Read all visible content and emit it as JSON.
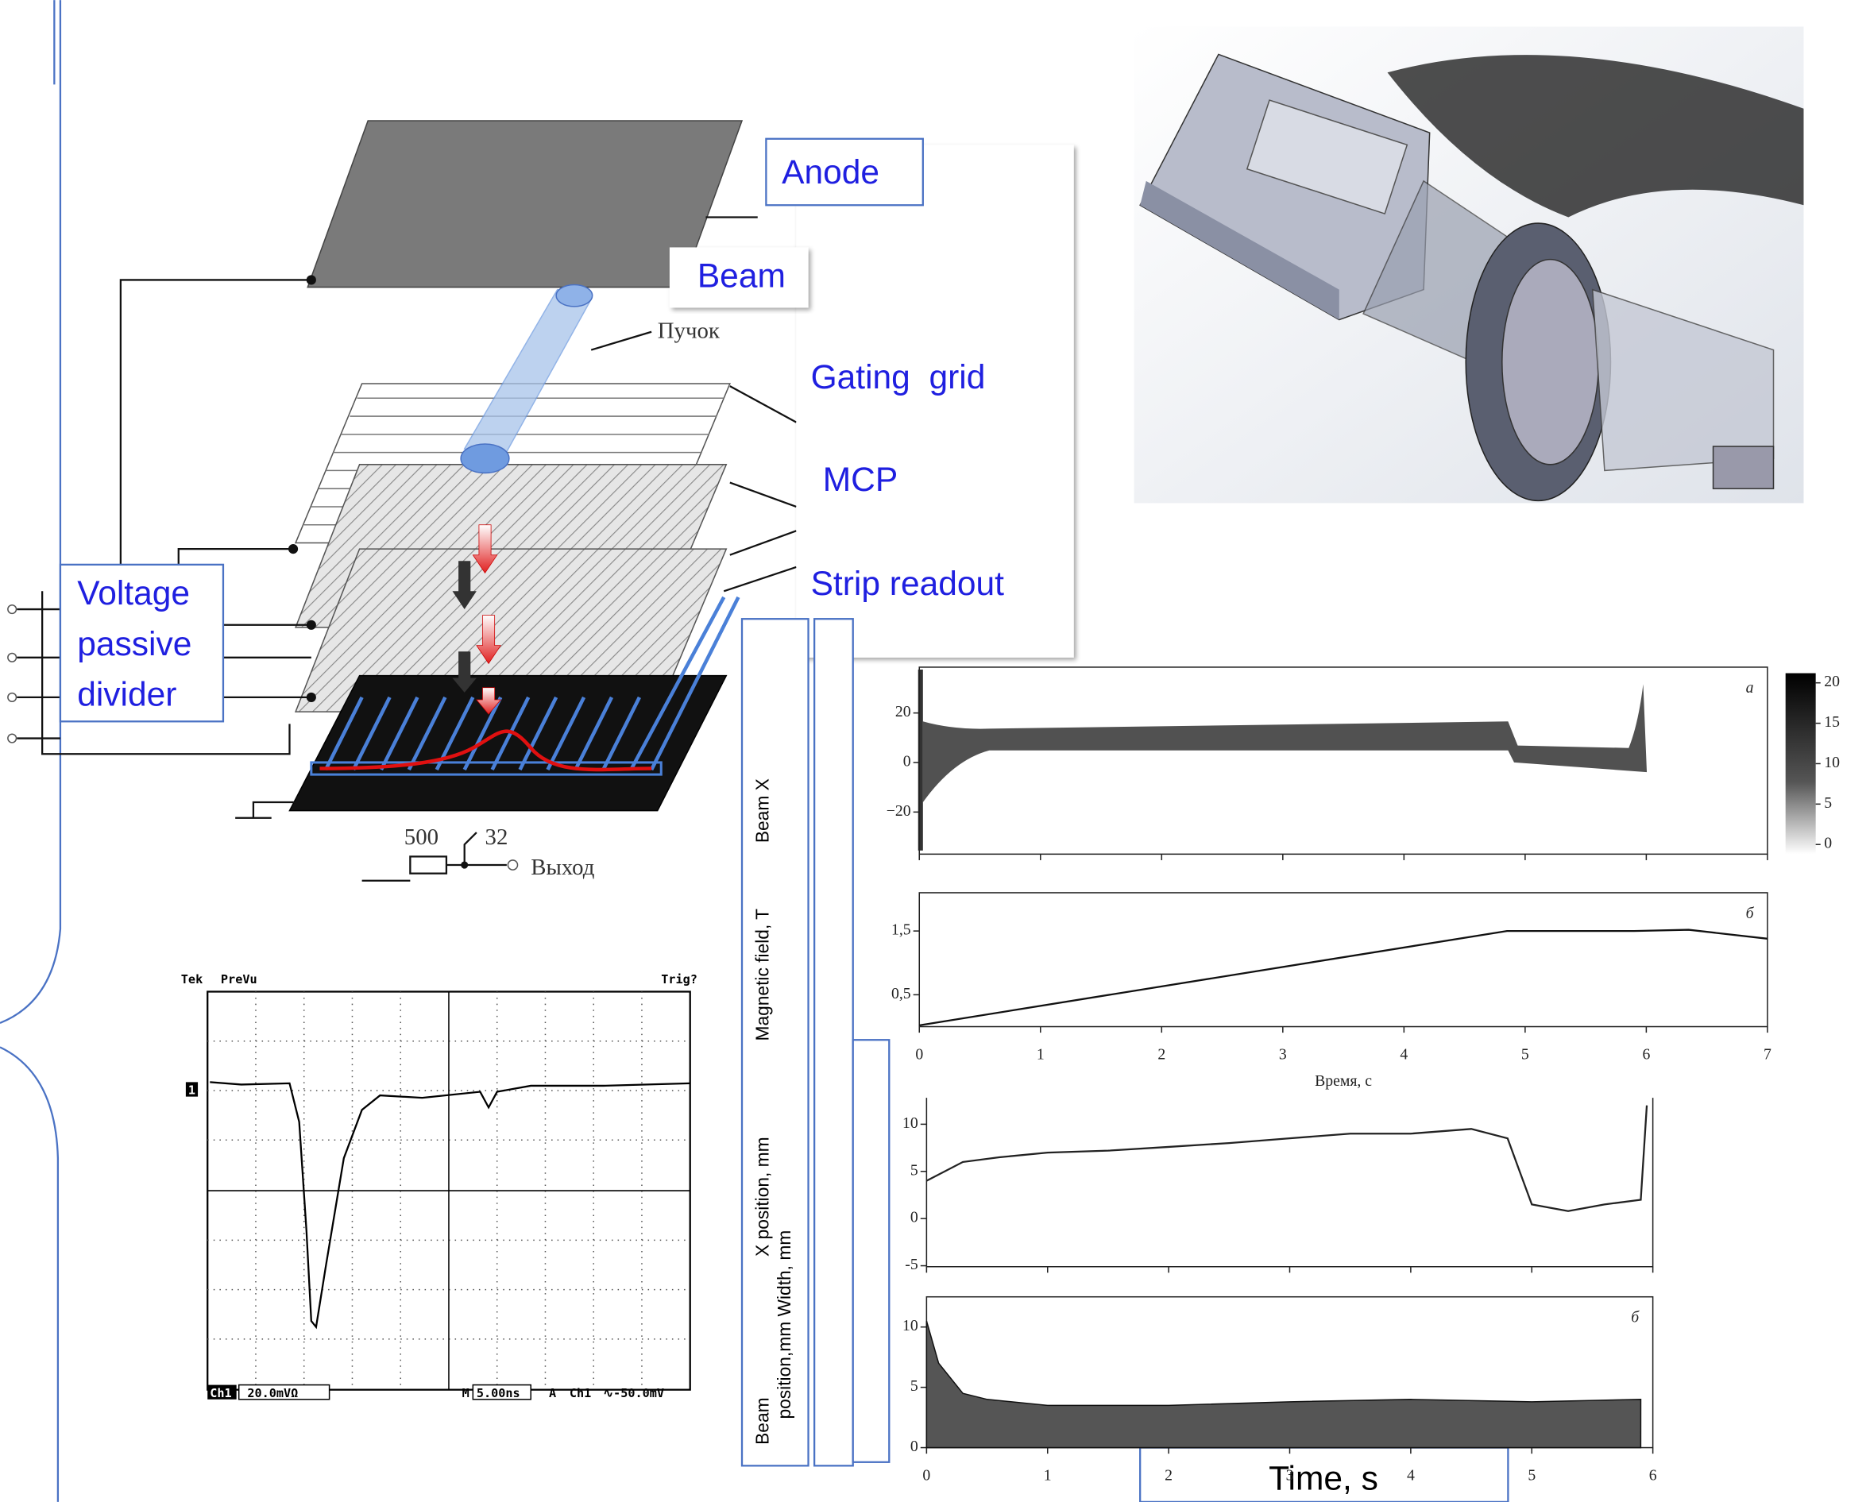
{
  "labels": {
    "anode": "Anode",
    "beam": "Beam",
    "gating_grid": "Gating  grid",
    "mcp": "MCP",
    "strip_readout": "Strip readout",
    "voltage_divider": [
      "Voltage",
      "passive",
      "divider"
    ],
    "time_axis": "Time, s"
  },
  "schematic": {
    "beam_ru": "Пучок",
    "output_ru": "Выход",
    "resistor": "500",
    "channels": "32"
  },
  "oscilloscope": {
    "brand": "Tek",
    "mode": "PreVu",
    "trigger": "Trig?",
    "marker": "1",
    "channel": "Ch1",
    "scale": "20.0mVΩ",
    "time_prefix": "M",
    "time_scale": "5.00ns",
    "trigger_prefix": "A",
    "trigger_channel": "Ch1",
    "trigger_level": "∿-50.0mV"
  },
  "axis_labels": [
    "Beam X",
    "Magnetic field, T",
    "X position, mm",
    "Beam",
    "position,mm Width, mm"
  ],
  "chart_data": [
    {
      "type": "heatmap",
      "panel_label": "a",
      "ylim": [
        -37,
        38.5
      ],
      "yticks": [
        20,
        0,
        {
          "value": -20,
          "label": "−20"
        }
      ],
      "colorbar_lim": [
        0,
        20
      ],
      "colorbar_ticks": [
        20,
        15,
        10,
        5,
        0
      ]
    },
    {
      "type": "line",
      "panel_label": "б",
      "x_label": "Время, с",
      "x": [
        0,
        4.85,
        5.9,
        6.35,
        7
      ],
      "values": [
        0.02,
        1.5,
        1.5,
        1.52,
        1.38
      ],
      "color": "#111111",
      "xlim": [
        0,
        7
      ],
      "xticks": [
        0,
        1,
        2,
        3,
        4,
        5,
        6,
        7
      ],
      "ylim": [
        0,
        2.1
      ],
      "yticks": [
        {
          "value": 1.5,
          "label": "1,5"
        },
        {
          "value": 0.5,
          "label": "0,5"
        }
      ]
    },
    {
      "type": "line",
      "x": [
        0,
        0.3,
        0.6,
        1,
        1.5,
        2,
        2.5,
        3,
        3.5,
        4,
        4.5,
        4.8,
        4.9,
        5.0,
        5.3,
        5.6,
        5.9,
        5.95
      ],
      "values": [
        4,
        6,
        6.5,
        7,
        7.2,
        7.6,
        8,
        8.5,
        9,
        9,
        9.5,
        8.5,
        5,
        1.5,
        0.8,
        1.5,
        2,
        12
      ],
      "color": "#222222",
      "xlim": [
        0,
        6
      ],
      "ylim": [
        -5.1,
        12.8
      ],
      "yticks": [
        10,
        5,
        0,
        -5
      ]
    },
    {
      "type": "area",
      "panel_label": "б",
      "x": [
        0,
        0.1,
        0.3,
        0.5,
        1,
        2,
        3,
        4,
        5,
        5.9
      ],
      "values": [
        10.5,
        7,
        4.5,
        4,
        3.5,
        3.5,
        3.8,
        4,
        3.8,
        4
      ],
      "color": "#555555",
      "xlim": [
        0,
        6
      ],
      "xticks": [
        0,
        1,
        2,
        3,
        4,
        5,
        6
      ],
      "ylim": [
        0,
        12.5
      ],
      "yticks": [
        10,
        5,
        0
      ]
    }
  ]
}
